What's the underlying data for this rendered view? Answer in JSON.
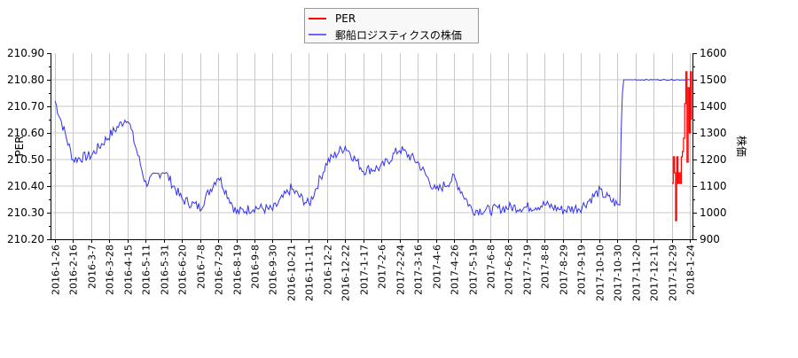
{
  "legend": {
    "items": [
      {
        "label": "PER",
        "color": "#ff0000"
      },
      {
        "label": "郵船ロジスティクスの株価",
        "color": "#0000ff"
      }
    ]
  },
  "axes": {
    "left_label": "PER",
    "right_label": "株価",
    "left_ticks": [
      "210.90",
      "210.80",
      "210.70",
      "210.60",
      "210.50",
      "210.40",
      "210.30",
      "210.20"
    ],
    "right_ticks": [
      "1600",
      "1500",
      "1400",
      "1300",
      "1200",
      "1100",
      "1000",
      "900"
    ]
  },
  "chart_data": {
    "type": "line",
    "title": "",
    "xlabel": "",
    "ylabel": "PER",
    "y2label": "株価",
    "ylim": [
      210.2,
      210.9
    ],
    "y2lim": [
      900,
      1600
    ],
    "grid": true,
    "legend_position": "top-center",
    "x_tick_labels": [
      "2016-1-26",
      "2016-2-16",
      "2016-3-7",
      "2016-3-28",
      "2016-4-15",
      "2016-5-11",
      "2016-5-31",
      "2016-6-20",
      "2016-7-8",
      "2016-7-29",
      "2016-8-19",
      "2016-9-8",
      "2016-9-30",
      "2016-10-21",
      "2016-11-11",
      "2016-12-2",
      "2016-12-22",
      "2017-1-17",
      "2017-2-6",
      "2017-2-24",
      "2017-3-16",
      "2017-4-6",
      "2017-4-26",
      "2017-5-19",
      "2017-6-8",
      "2017-6-28",
      "2017-7-19",
      "2017-8-8",
      "2017-8-29",
      "2017-9-19",
      "2017-10-10",
      "2017-10-30",
      "2017-11-20",
      "2017-12-11",
      "2017-12-29",
      "2018-1-24"
    ],
    "series": [
      {
        "name": "郵船ロジスティクスの株価",
        "axis": "right",
        "color": "#0000ff",
        "x": [
          "2016-1-26",
          "2016-2-16",
          "2016-3-7",
          "2016-3-28",
          "2016-4-15",
          "2016-5-11",
          "2016-5-31",
          "2016-6-20",
          "2016-7-8",
          "2016-7-29",
          "2016-8-19",
          "2016-9-8",
          "2016-9-30",
          "2016-10-21",
          "2016-11-11",
          "2016-12-2",
          "2016-12-22",
          "2017-1-17",
          "2017-2-6",
          "2017-2-24",
          "2017-3-16",
          "2017-4-6",
          "2017-4-26",
          "2017-5-19",
          "2017-6-8",
          "2017-6-28",
          "2017-7-19",
          "2017-8-8",
          "2017-8-29",
          "2017-9-19",
          "2017-10-10",
          "2017-10-30",
          "2017-11-20",
          "2017-12-11",
          "2017-12-29",
          "2018-1-24"
        ],
        "values": [
          1420,
          1200,
          1215,
          1290,
          1360,
          1110,
          1160,
          1050,
          1020,
          1140,
          1000,
          1020,
          1010,
          1090,
          1030,
          1190,
          1250,
          1160,
          1170,
          1240,
          1190,
          1080,
          1130,
          1010,
          1010,
          1020,
          1020,
          1030,
          1010,
          1020,
          1080,
          1030,
          1500,
          1500,
          1500,
          1500
        ]
      },
      {
        "name": "PER",
        "axis": "left",
        "color": "#ff0000",
        "x": [
          "2017-12-29",
          "2018-1-2",
          "2018-1-5",
          "2018-1-10",
          "2018-1-15",
          "2018-1-19",
          "2018-1-22",
          "2018-1-24"
        ],
        "values": [
          210.41,
          210.51,
          210.27,
          210.51,
          210.41,
          210.51,
          210.83,
          210.6
        ]
      }
    ]
  }
}
